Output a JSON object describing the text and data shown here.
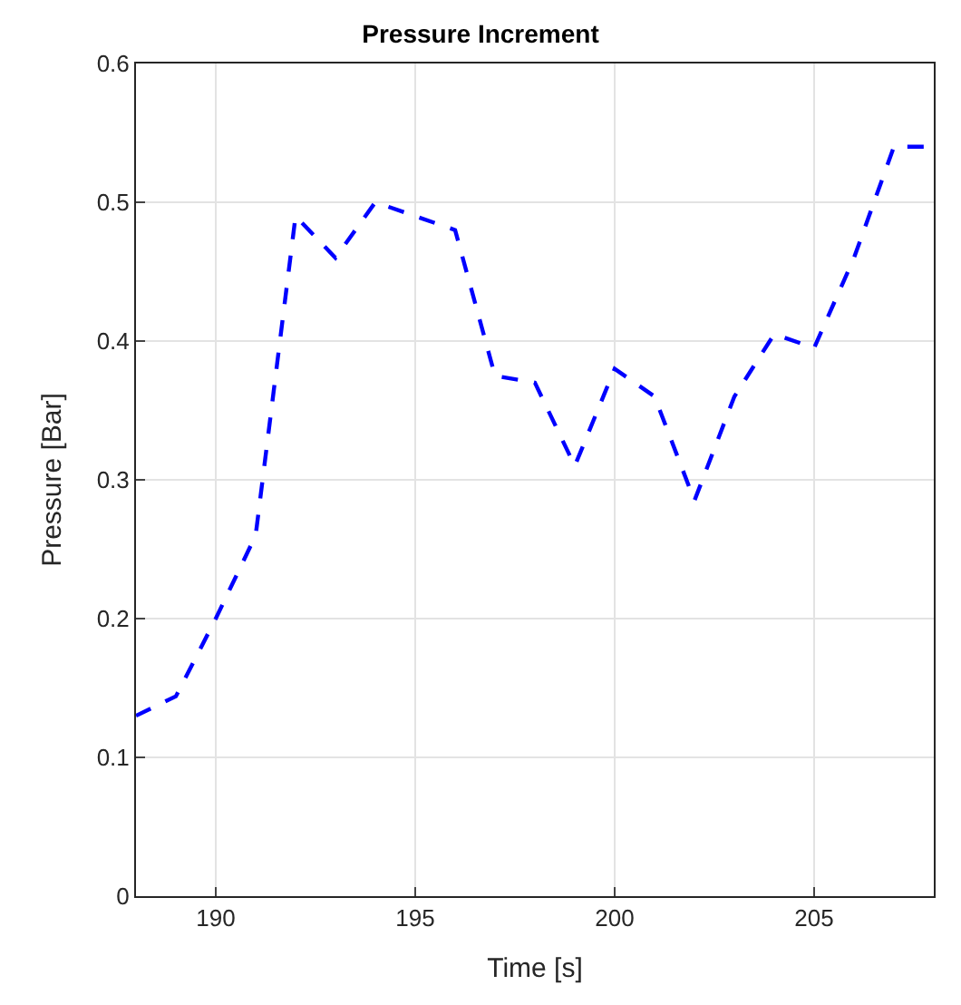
{
  "chart_data": {
    "type": "line",
    "title": "Pressure Increment",
    "xlabel": "Time [s]",
    "ylabel": "Pressure [Bar]",
    "x": [
      188,
      189,
      190,
      191,
      192,
      193,
      194,
      195,
      196,
      197,
      198,
      199,
      200,
      201,
      202,
      203,
      204,
      205,
      206,
      207,
      208
    ],
    "series": [
      {
        "color": "#0000ff",
        "values": [
          0.13,
          0.144,
          0.2,
          0.26,
          0.49,
          0.46,
          0.5,
          0.49,
          0.48,
          0.375,
          0.37,
          0.31,
          0.38,
          0.36,
          0.285,
          0.36,
          0.405,
          0.395,
          0.46,
          0.54,
          0.54
        ]
      }
    ],
    "xlim": [
      188,
      208
    ],
    "xticks": [
      190,
      195,
      200,
      205
    ],
    "ylim": [
      0,
      0.6
    ],
    "yticks": [
      0,
      0.1,
      0.2,
      0.3,
      0.4,
      0.5,
      0.6
    ],
    "grid": true,
    "marker": "none",
    "line_style": "dashed"
  }
}
